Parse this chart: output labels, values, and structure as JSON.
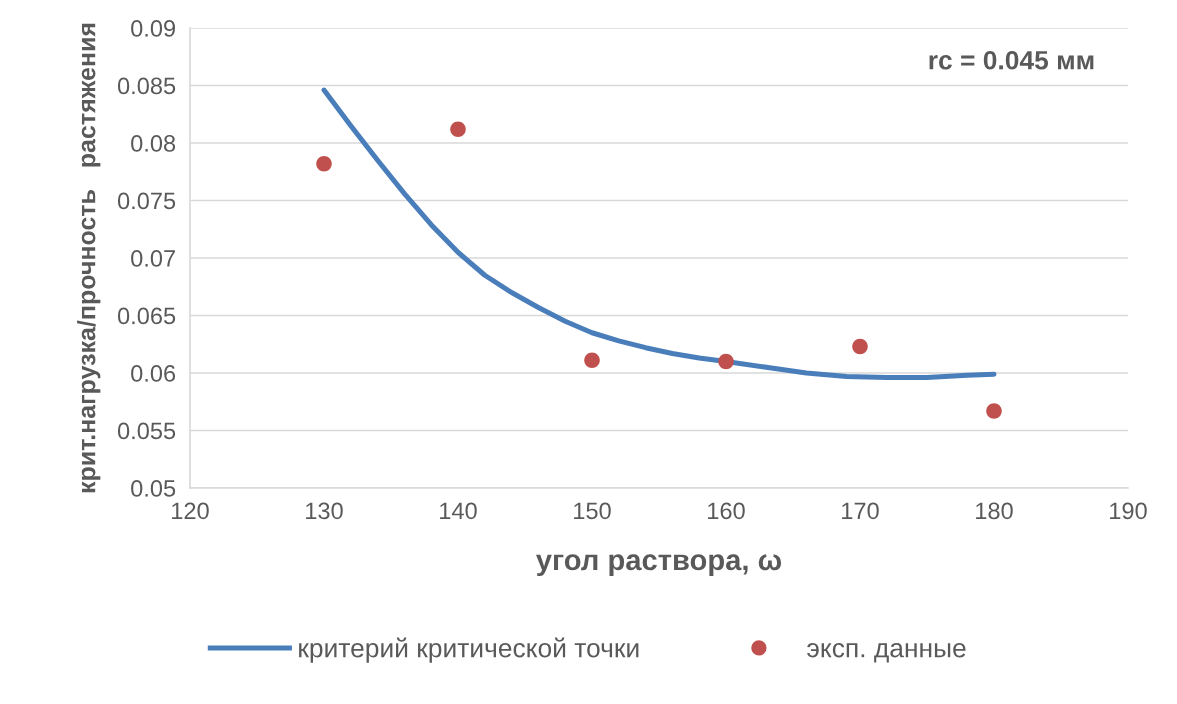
{
  "chart_data": {
    "type": "scatter",
    "xlabel": "угол раствора, ω",
    "ylabel": "крит.нагрузка/прочность   растяжения",
    "annotations": [
      "rc = 0.045 мм"
    ],
    "xlim": [
      120,
      190
    ],
    "xticks": [
      120,
      130,
      140,
      150,
      160,
      170,
      180,
      190
    ],
    "ylim": [
      0.05,
      0.09
    ],
    "yticks": [
      0.05,
      0.055,
      0.06,
      0.065,
      0.07,
      0.075,
      0.08,
      0.085,
      0.09
    ],
    "grid": "y",
    "legend": "bottom",
    "series": [
      {
        "name": "критерий критической точки",
        "type": "line",
        "color": "#4a7ebb",
        "marker": "none",
        "line_style": "solid",
        "x": [
          130,
          132,
          134,
          136,
          138,
          140,
          142,
          144,
          146,
          148,
          150,
          152,
          154,
          156,
          158,
          160,
          163,
          166,
          169,
          172,
          175,
          178,
          180
        ],
        "values": [
          0.0846,
          0.0815,
          0.0785,
          0.0756,
          0.0729,
          0.0705,
          0.0685,
          0.067,
          0.0657,
          0.0645,
          0.0635,
          0.0628,
          0.0622,
          0.0617,
          0.0613,
          0.061,
          0.0605,
          0.06,
          0.0597,
          0.0596,
          0.0596,
          0.0598,
          0.0599
        ]
      },
      {
        "name": "эксп. данные",
        "color": "#c0504d",
        "marker": "circle",
        "x": [
          130,
          140,
          150,
          160,
          170,
          180
        ],
        "values": [
          0.0782,
          0.0812,
          0.0611,
          0.061,
          0.0623,
          0.0567
        ]
      }
    ]
  }
}
